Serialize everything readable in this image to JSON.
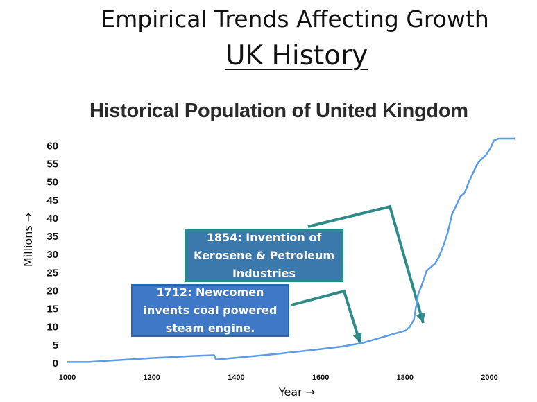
{
  "slide": {
    "title": "Empirical Trends Affecting Growth",
    "subtitle": "UK History"
  },
  "chart_data": {
    "type": "line",
    "title": "Historical Population of United Kingdom",
    "xlabel": "Year →",
    "ylabel": "Millions →",
    "xlim": [
      1000,
      2060
    ],
    "ylim": [
      0,
      62
    ],
    "xticks": [
      1000,
      1200,
      1400,
      1600,
      1800,
      2000
    ],
    "yticks": [
      0,
      5,
      10,
      15,
      20,
      25,
      30,
      35,
      40,
      45,
      50,
      55,
      60
    ],
    "series": [
      {
        "name": "Population",
        "color": "#5b9be8",
        "x": [
          1000,
          1050,
          1100,
          1200,
          1300,
          1348,
          1352,
          1400,
          1500,
          1600,
          1650,
          1700,
          1750,
          1801,
          1811,
          1821,
          1831,
          1841,
          1851,
          1861,
          1871,
          1881,
          1891,
          1901,
          1911,
          1921,
          1931,
          1941,
          1951,
          1961,
          1971,
          1981,
          1991,
          2001,
          2011,
          2021,
          2030,
          2040,
          2050,
          2060
        ],
        "values": [
          0.3,
          0.3,
          0.7,
          1.4,
          2.0,
          2.2,
          1.0,
          1.5,
          2.6,
          3.9,
          4.6,
          5.6,
          7.3,
          9.0,
          10.0,
          12.0,
          19.0,
          22.0,
          25.5,
          26.5,
          27.5,
          29.5,
          32.5,
          36.0,
          41.0,
          43.5,
          46.0,
          47.0,
          50.0,
          52.5,
          55.0,
          56.3,
          57.4,
          59.1,
          61.5,
          62.0,
          62.0,
          62.0,
          62.0,
          62.0
        ]
      }
    ],
    "annotations": [
      {
        "label": "1854: Invention of Kerosene & Petroleum Industries",
        "x": 1840,
        "y": 10
      },
      {
        "label": "1712: Newcomen invents coal powered steam engine.",
        "x": 1712,
        "y": 5
      }
    ]
  }
}
